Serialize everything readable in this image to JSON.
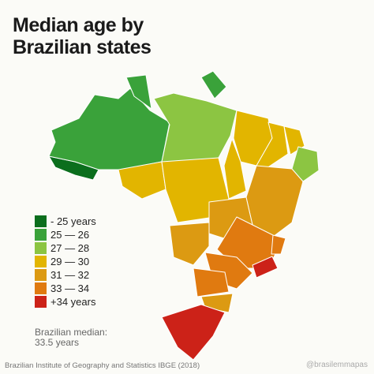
{
  "title": [
    "Median age by",
    "Brazilian states"
  ],
  "legend": [
    {
      "label": "- 25 years",
      "color": "#0b6e1d"
    },
    {
      "label": "25 — 26",
      "color": "#3aa23a"
    },
    {
      "label": "27 — 28",
      "color": "#8cc542"
    },
    {
      "label": "29 — 30",
      "color": "#e2b500"
    },
    {
      "label": "31 — 32",
      "color": "#dc9a12"
    },
    {
      "label": "33 — 34",
      "color": "#e07a10"
    },
    {
      "label": "+34 years",
      "color": "#cc2218"
    }
  ],
  "note": [
    "Brazilian median:",
    "33.5 years"
  ],
  "source": "Brazilian Institute of Geography and Statistics IBGE (2018)",
  "credit": "@brasilemmapas"
}
